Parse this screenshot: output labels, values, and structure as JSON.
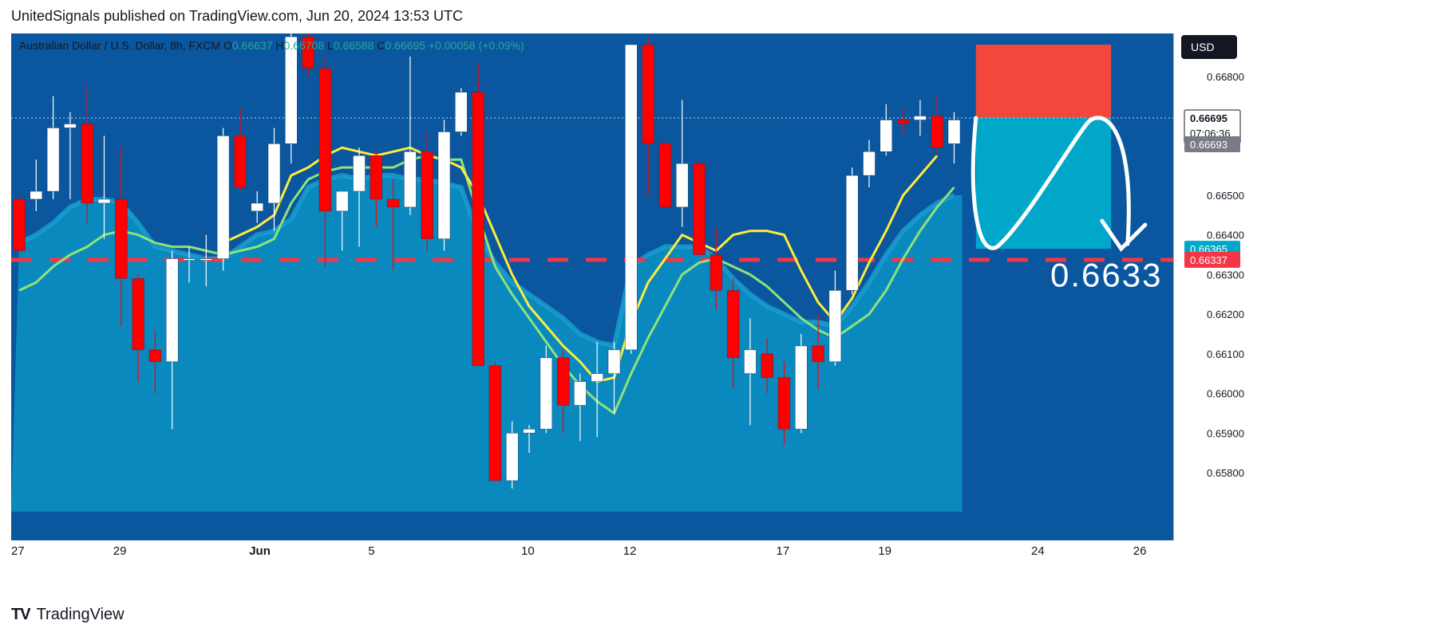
{
  "header": {
    "publisher_line": "UnitedSignals published on TradingView.com, Jun 20, 2024 13:53 UTC"
  },
  "footer": {
    "logo_text": "TradingView"
  },
  "colors": {
    "background": "#0a579f",
    "area_fill": "#0a8cc0",
    "area_line": "#1aa0cf",
    "ma_fast": "#ffeb3b",
    "ma_slow": "#8fe27a",
    "bull": "#ffffff",
    "bear": "#ff0000",
    "stop_zone": "#f2473c",
    "target_zone": "#00a7c9",
    "dash_line": "#f23645"
  },
  "chart_data": {
    "type": "candlestick",
    "symbol_line": {
      "name": "Australian Dollar / U.S. Dollar, 8h, FXCM",
      "o_label": "O",
      "o": "0.66637",
      "h_label": "H",
      "h": "0.66708",
      "l_label": "L",
      "l": "0.66588",
      "c_label": "C",
      "c": "0.66695",
      "change": "+0.00058 (+0.09%)"
    },
    "currency": "USD",
    "ylim": [
      0.6575,
      0.6688
    ],
    "y_ticks": [
      0.658,
      0.659,
      0.66,
      0.661,
      0.662,
      0.663,
      0.664,
      0.665,
      0.668
    ],
    "y_tick_labels": [
      "0.65800",
      "0.65900",
      "0.66000",
      "0.66100",
      "0.66200",
      "0.66300",
      "0.66400",
      "0.66500",
      "0.66800"
    ],
    "x_labels": [
      {
        "i": 0,
        "text": "27"
      },
      {
        "i": 6,
        "text": "29"
      },
      {
        "i": 14,
        "text": "Jun"
      },
      {
        "i": 21,
        "text": "5"
      },
      {
        "i": 30,
        "text": "10"
      },
      {
        "i": 36,
        "text": "12"
      },
      {
        "i": 45,
        "text": "17"
      },
      {
        "i": 51,
        "text": "19"
      },
      {
        "i": 60,
        "text": "24"
      },
      {
        "i": 66,
        "text": "26"
      }
    ],
    "total_slots": 68,
    "candles": [
      {
        "o": 0.6649,
        "h": 0.665,
        "l": 0.6636,
        "c": 0.6636
      },
      {
        "o": 0.6649,
        "h": 0.6659,
        "l": 0.6646,
        "c": 0.6651
      },
      {
        "o": 0.6651,
        "h": 0.6675,
        "l": 0.6649,
        "c": 0.6667
      },
      {
        "o": 0.6667,
        "h": 0.6671,
        "l": 0.6649,
        "c": 0.6668
      },
      {
        "o": 0.6668,
        "h": 0.6678,
        "l": 0.6643,
        "c": 0.6648
      },
      {
        "o": 0.6648,
        "h": 0.6665,
        "l": 0.6639,
        "c": 0.6649
      },
      {
        "o": 0.6649,
        "h": 0.6662,
        "l": 0.6617,
        "c": 0.6629
      },
      {
        "o": 0.6629,
        "h": 0.663,
        "l": 0.6603,
        "c": 0.6611
      },
      {
        "o": 0.6611,
        "h": 0.6616,
        "l": 0.66,
        "c": 0.6608
      },
      {
        "o": 0.6608,
        "h": 0.6636,
        "l": 0.6591,
        "c": 0.6634
      },
      {
        "o": 0.6634,
        "h": 0.6637,
        "l": 0.6628,
        "c": 0.6634
      },
      {
        "o": 0.6634,
        "h": 0.664,
        "l": 0.6627,
        "c": 0.6634
      },
      {
        "o": 0.6634,
        "h": 0.6667,
        "l": 0.6631,
        "c": 0.6665
      },
      {
        "o": 0.6665,
        "h": 0.6672,
        "l": 0.6651,
        "c": 0.6652
      },
      {
        "o": 0.6646,
        "h": 0.6651,
        "l": 0.6643,
        "c": 0.6648
      },
      {
        "o": 0.6648,
        "h": 0.6667,
        "l": 0.6641,
        "c": 0.6663
      },
      {
        "o": 0.6663,
        "h": 0.6693,
        "l": 0.6658,
        "c": 0.669
      },
      {
        "o": 0.669,
        "h": 0.6694,
        "l": 0.668,
        "c": 0.6682
      },
      {
        "o": 0.6682,
        "h": 0.6685,
        "l": 0.6632,
        "c": 0.6646
      },
      {
        "o": 0.6646,
        "h": 0.665,
        "l": 0.6636,
        "c": 0.6651
      },
      {
        "o": 0.6651,
        "h": 0.6662,
        "l": 0.6637,
        "c": 0.666
      },
      {
        "o": 0.666,
        "h": 0.6661,
        "l": 0.6642,
        "c": 0.6649
      },
      {
        "o": 0.6649,
        "h": 0.6654,
        "l": 0.6631,
        "c": 0.6647
      },
      {
        "o": 0.6647,
        "h": 0.6685,
        "l": 0.6645,
        "c": 0.6661
      },
      {
        "o": 0.6661,
        "h": 0.6666,
        "l": 0.6636,
        "c": 0.6639
      },
      {
        "o": 0.6639,
        "h": 0.6669,
        "l": 0.6636,
        "c": 0.6666
      },
      {
        "o": 0.6666,
        "h": 0.6677,
        "l": 0.6665,
        "c": 0.6676
      },
      {
        "o": 0.6676,
        "h": 0.6683,
        "l": 0.6607,
        "c": 0.6607
      },
      {
        "o": 0.6607,
        "h": 0.6608,
        "l": 0.6578,
        "c": 0.6578
      },
      {
        "o": 0.6578,
        "h": 0.6593,
        "l": 0.6576,
        "c": 0.659
      },
      {
        "o": 0.659,
        "h": 0.6592,
        "l": 0.6585,
        "c": 0.6591
      },
      {
        "o": 0.6591,
        "h": 0.6612,
        "l": 0.659,
        "c": 0.6609
      },
      {
        "o": 0.6609,
        "h": 0.6611,
        "l": 0.659,
        "c": 0.6597
      },
      {
        "o": 0.6597,
        "h": 0.6605,
        "l": 0.6588,
        "c": 0.6603
      },
      {
        "o": 0.6603,
        "h": 0.6613,
        "l": 0.6589,
        "c": 0.6605
      },
      {
        "o": 0.6605,
        "h": 0.6613,
        "l": 0.6595,
        "c": 0.6611
      },
      {
        "o": 0.6611,
        "h": 0.6688,
        "l": 0.661,
        "c": 0.6688
      },
      {
        "o": 0.6688,
        "h": 0.669,
        "l": 0.665,
        "c": 0.6663
      },
      {
        "o": 0.6663,
        "h": 0.6664,
        "l": 0.6647,
        "c": 0.6647
      },
      {
        "o": 0.6647,
        "h": 0.6674,
        "l": 0.6642,
        "c": 0.6658
      },
      {
        "o": 0.6658,
        "h": 0.6659,
        "l": 0.6635,
        "c": 0.6635
      },
      {
        "o": 0.6635,
        "h": 0.6642,
        "l": 0.6621,
        "c": 0.6626
      },
      {
        "o": 0.6626,
        "h": 0.6629,
        "l": 0.6601,
        "c": 0.6609
      },
      {
        "o": 0.6605,
        "h": 0.6619,
        "l": 0.6592,
        "c": 0.6611
      },
      {
        "o": 0.661,
        "h": 0.6614,
        "l": 0.66,
        "c": 0.6604
      },
      {
        "o": 0.6604,
        "h": 0.6608,
        "l": 0.6587,
        "c": 0.6591
      },
      {
        "o": 0.6591,
        "h": 0.6615,
        "l": 0.659,
        "c": 0.6612
      },
      {
        "o": 0.6612,
        "h": 0.662,
        "l": 0.6601,
        "c": 0.6608
      },
      {
        "o": 0.6608,
        "h": 0.6631,
        "l": 0.6607,
        "c": 0.6626
      },
      {
        "o": 0.6626,
        "h": 0.6657,
        "l": 0.6625,
        "c": 0.6655
      },
      {
        "o": 0.6655,
        "h": 0.6664,
        "l": 0.6652,
        "c": 0.6661
      },
      {
        "o": 0.6661,
        "h": 0.6673,
        "l": 0.666,
        "c": 0.6669
      },
      {
        "o": 0.6669,
        "h": 0.6672,
        "l": 0.6665,
        "c": 0.6668
      },
      {
        "o": 0.6669,
        "h": 0.6674,
        "l": 0.6665,
        "c": 0.667
      },
      {
        "o": 0.667,
        "h": 0.6675,
        "l": 0.666,
        "c": 0.6662
      },
      {
        "o": 0.6663,
        "h": 0.6671,
        "l": 0.6658,
        "c": 0.6669
      }
    ],
    "ma_fast": [
      null,
      null,
      null,
      null,
      null,
      null,
      null,
      null,
      null,
      null,
      null,
      null,
      0.6638,
      0.664,
      0.6642,
      0.6645,
      0.6655,
      0.6657,
      0.666,
      0.6662,
      0.6661,
      0.666,
      0.6661,
      0.6662,
      0.666,
      0.6659,
      0.6657,
      0.665,
      0.664,
      0.663,
      0.6622,
      0.6617,
      0.6612,
      0.6608,
      0.6603,
      0.6604,
      0.6618,
      0.6628,
      0.6634,
      0.664,
      0.6638,
      0.6636,
      0.664,
      0.6641,
      0.6641,
      0.664,
      0.6631,
      0.6623,
      0.6618,
      0.6624,
      0.6633,
      0.6641,
      0.665,
      0.6655,
      0.666
    ],
    "ma_slow": [
      0.6626,
      0.6628,
      0.6632,
      0.6635,
      0.6637,
      0.664,
      0.6641,
      0.664,
      0.6638,
      0.6637,
      0.6637,
      0.6636,
      0.6635,
      0.6636,
      0.6637,
      0.6639,
      0.6648,
      0.6654,
      0.6656,
      0.6657,
      0.6657,
      0.6657,
      0.6657,
      0.6659,
      0.666,
      0.6659,
      0.6659,
      0.6645,
      0.6632,
      0.6625,
      0.6619,
      0.6613,
      0.6607,
      0.6602,
      0.6598,
      0.6595,
      0.6605,
      0.6614,
      0.6622,
      0.663,
      0.6633,
      0.6634,
      0.6632,
      0.663,
      0.6627,
      0.6623,
      0.6619,
      0.6616,
      0.6614,
      0.6617,
      0.662,
      0.6626,
      0.6634,
      0.6641,
      0.6647,
      0.6652
    ],
    "area_top": [
      0.6638,
      0.664,
      0.6643,
      0.6647,
      0.6649,
      0.6649,
      0.6648,
      0.6643,
      0.6637,
      0.6636,
      0.6635,
      0.6634,
      0.6634,
      0.6637,
      0.664,
      0.6641,
      0.6644,
      0.6652,
      0.6654,
      0.6655,
      0.6654,
      0.6655,
      0.6655,
      0.6654,
      0.6654,
      0.6653,
      0.6652,
      0.664,
      0.6633,
      0.6628,
      0.6625,
      0.6622,
      0.6619,
      0.6615,
      0.6613,
      0.6612,
      0.6632,
      0.6635,
      0.6637,
      0.6637,
      0.6637,
      0.6634,
      0.6629,
      0.6625,
      0.6622,
      0.662,
      0.6618,
      0.6618,
      0.6617,
      0.6622,
      0.6628,
      0.6635,
      0.6641,
      0.6645,
      0.6648,
      0.665
    ],
    "hline_price": 0.66337,
    "position": {
      "stop_top": 0.6688,
      "entry": 0.66695,
      "target": 0.66365
    },
    "price_labels": [
      {
        "text": "0.66695",
        "value": 0.66695,
        "sub": "07:06:36",
        "style": "current"
      },
      {
        "text": "0.66693",
        "value": 0.66693,
        "style": "gray"
      },
      {
        "text": "0.66365",
        "value": 0.66365,
        "style": "target"
      },
      {
        "text": "0.66337",
        "value": 0.66337,
        "style": "line"
      }
    ],
    "annotation": "0.6633"
  }
}
